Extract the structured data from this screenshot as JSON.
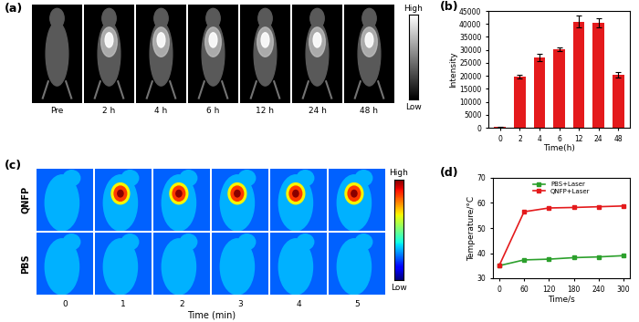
{
  "chart_data": [
    {
      "type": "bar",
      "title": "(b)",
      "categories": [
        "0",
        "2",
        "4",
        "6",
        "12",
        "24",
        "48"
      ],
      "values": [
        300,
        19700,
        27000,
        30200,
        40800,
        40400,
        20300
      ],
      "errors": [
        200,
        600,
        1500,
        700,
        2300,
        1800,
        1000
      ],
      "color": "#e41a1c",
      "xlabel": "Time(h)",
      "ylabel": "Intensity",
      "ylim": [
        0,
        45000
      ],
      "yticks": [
        0,
        5000,
        10000,
        15000,
        20000,
        25000,
        30000,
        35000,
        40000,
        45000
      ]
    },
    {
      "type": "line",
      "title": "(d)",
      "x": [
        0,
        60,
        120,
        180,
        240,
        300
      ],
      "series": [
        {
          "name": "PBS+Laser",
          "color": "#2ca02c",
          "marker": "square",
          "values": [
            35,
            37.3,
            37.6,
            38.2,
            38.5,
            39
          ]
        },
        {
          "name": "QNFP+Laser",
          "color": "#e41a1c",
          "marker": "square",
          "values": [
            35,
            56.5,
            58,
            58.2,
            58.5,
            58.8
          ]
        }
      ],
      "xlabel": "Time/s",
      "ylabel": "Temperature/°C",
      "xlim": [
        -15,
        315
      ],
      "xticks": [
        0,
        60,
        120,
        180,
        240,
        300
      ],
      "ylim": [
        30,
        70
      ],
      "yticks": [
        30,
        40,
        50,
        60,
        70
      ],
      "legend": "upper center"
    }
  ],
  "image_panels": [
    {
      "title": "(a)",
      "labels": [
        "Pre",
        "2 h",
        "4 h",
        "6 h",
        "12 h",
        "24 h",
        "48 h"
      ],
      "colorbar": {
        "high": "High",
        "low": "Low"
      }
    },
    {
      "title": "(c)",
      "rows": [
        "QNFP",
        "PBS"
      ],
      "columns": [
        "0",
        "1",
        "2",
        "3",
        "4",
        "5"
      ],
      "xlabel": "Time (min)",
      "colorbar": {
        "high": "High",
        "low": "Low"
      }
    }
  ]
}
